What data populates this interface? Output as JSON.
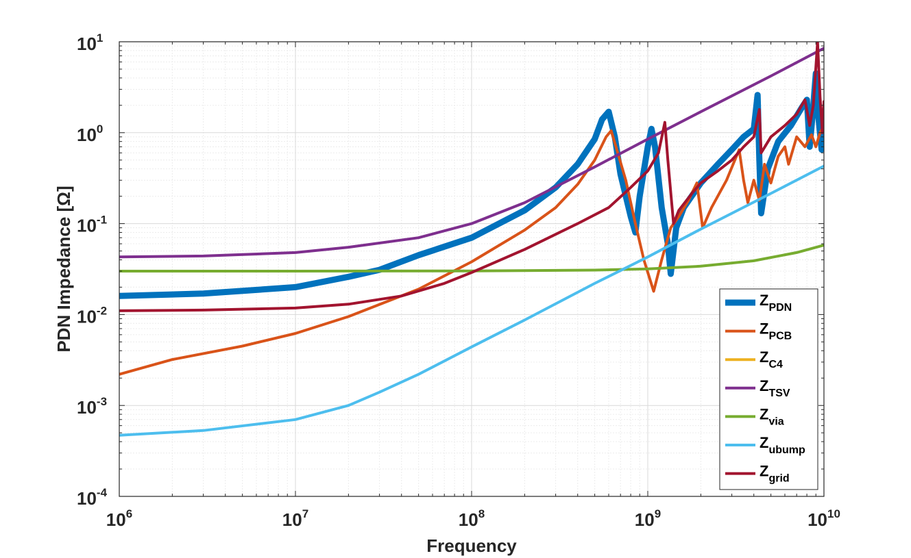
{
  "chart_data": {
    "type": "line",
    "title": "",
    "xlabel": "Frequency",
    "ylabel": "PDN Impedance [Ω]",
    "xscale": "log",
    "yscale": "log",
    "xlim": [
      1000000,
      10000000000
    ],
    "ylim": [
      0.0001,
      10
    ],
    "grid": "on (major and minor)",
    "legend_position": "lower-right",
    "x_ticks": [
      {
        "base": "10",
        "exp": "6"
      },
      {
        "base": "10",
        "exp": "7"
      },
      {
        "base": "10",
        "exp": "8"
      },
      {
        "base": "10",
        "exp": "9"
      },
      {
        "base": "10",
        "exp": "10"
      }
    ],
    "y_ticks": [
      {
        "base": "10",
        "exp": "-4"
      },
      {
        "base": "10",
        "exp": "-3"
      },
      {
        "base": "10",
        "exp": "-2"
      },
      {
        "base": "10",
        "exp": "-1"
      },
      {
        "base": "10",
        "exp": "0"
      },
      {
        "base": "10",
        "exp": "1"
      }
    ],
    "series": [
      {
        "name_main": "Z",
        "name_sub": "PDN",
        "color": "#0072BD",
        "width": 9,
        "points": [
          [
            1000000.0,
            0.016
          ],
          [
            3000000.0,
            0.017
          ],
          [
            10000000.0,
            0.02
          ],
          [
            20000000.0,
            0.026
          ],
          [
            30000000.0,
            0.031
          ],
          [
            50000000.0,
            0.045
          ],
          [
            100000000.0,
            0.07
          ],
          [
            200000000.0,
            0.14
          ],
          [
            300000000.0,
            0.25
          ],
          [
            400000000.0,
            0.45
          ],
          [
            500000000.0,
            0.85
          ],
          [
            550000000.0,
            1.4
          ],
          [
            600000000.0,
            1.7
          ],
          [
            650000000.0,
            0.9
          ],
          [
            700000000.0,
            0.35
          ],
          [
            800000000.0,
            0.12
          ],
          [
            850000000.0,
            0.08
          ],
          [
            900000000.0,
            0.2
          ],
          [
            1000000000.0,
            0.7
          ],
          [
            1050000000.0,
            1.1
          ],
          [
            1100000000.0,
            0.7
          ],
          [
            1200000000.0,
            0.15
          ],
          [
            1300000000.0,
            0.06
          ],
          [
            1350000000.0,
            0.028
          ],
          [
            1450000000.0,
            0.09
          ],
          [
            1600000000.0,
            0.15
          ],
          [
            2000000000.0,
            0.28
          ],
          [
            2500000000.0,
            0.45
          ],
          [
            3000000000.0,
            0.65
          ],
          [
            3500000000.0,
            0.9
          ],
          [
            4000000000.0,
            1.1
          ],
          [
            4200000000.0,
            2.6
          ],
          [
            4300000000.0,
            0.5
          ],
          [
            4400000000.0,
            0.13
          ],
          [
            4800000000.0,
            0.4
          ],
          [
            5500000000.0,
            0.8
          ],
          [
            6500000000.0,
            1.2
          ],
          [
            7500000000.0,
            1.9
          ],
          [
            8000000000.0,
            2.3
          ],
          [
            8300000000.0,
            0.7
          ],
          [
            8600000000.0,
            1.5
          ],
          [
            9000000000.0,
            4.5
          ],
          [
            9300000000.0,
            1.5
          ],
          [
            9700000000.0,
            0.65
          ],
          [
            10000000000.0,
            1.2
          ]
        ]
      },
      {
        "name_main": "Z",
        "name_sub": "PCB",
        "color": "#D95319",
        "width": 4,
        "points": [
          [
            1000000.0,
            0.0022
          ],
          [
            2000000.0,
            0.0032
          ],
          [
            5000000.0,
            0.0045
          ],
          [
            10000000.0,
            0.0062
          ],
          [
            20000000.0,
            0.0095
          ],
          [
            50000000.0,
            0.019
          ],
          [
            100000000.0,
            0.038
          ],
          [
            200000000.0,
            0.085
          ],
          [
            300000000.0,
            0.15
          ],
          [
            400000000.0,
            0.27
          ],
          [
            500000000.0,
            0.5
          ],
          [
            580000000.0,
            0.9
          ],
          [
            620000000.0,
            1.05
          ],
          [
            660000000.0,
            0.7
          ],
          [
            750000000.0,
            0.3
          ],
          [
            850000000.0,
            0.1
          ],
          [
            950000000.0,
            0.04
          ],
          [
            1080000000.0,
            0.018
          ],
          [
            1200000000.0,
            0.04
          ],
          [
            1350000000.0,
            0.09
          ],
          [
            1500000000.0,
            0.12
          ],
          [
            1700000000.0,
            0.18
          ],
          [
            1900000000.0,
            0.28
          ],
          [
            2050000000.0,
            0.09
          ],
          [
            2300000000.0,
            0.15
          ],
          [
            2800000000.0,
            0.3
          ],
          [
            3300000000.0,
            0.65
          ],
          [
            3500000000.0,
            0.3
          ],
          [
            3700000000.0,
            0.17
          ],
          [
            4000000000.0,
            0.3
          ],
          [
            4300000000.0,
            0.18
          ],
          [
            4600000000.0,
            0.45
          ],
          [
            5000000000.0,
            0.28
          ],
          [
            5500000000.0,
            0.55
          ],
          [
            6000000000.0,
            0.7
          ],
          [
            6300000000.0,
            0.45
          ],
          [
            7000000000.0,
            0.9
          ],
          [
            7800000000.0,
            0.7
          ],
          [
            8500000000.0,
            0.95
          ],
          [
            9000000000.0,
            0.7
          ],
          [
            9500000000.0,
            1.0
          ],
          [
            10000000000.0,
            1.2
          ]
        ]
      },
      {
        "name_main": "Z",
        "name_sub": "C4",
        "color": "#EDB120",
        "width": 4,
        "points": []
      },
      {
        "name_main": "Z",
        "name_sub": "TSV",
        "color": "#7E2F8E",
        "width": 4,
        "points": [
          [
            1000000.0,
            0.043
          ],
          [
            3000000.0,
            0.044
          ],
          [
            10000000.0,
            0.048
          ],
          [
            20000000.0,
            0.055
          ],
          [
            50000000.0,
            0.07
          ],
          [
            100000000.0,
            0.1
          ],
          [
            200000000.0,
            0.17
          ],
          [
            500000000.0,
            0.42
          ],
          [
            1000000000.0,
            0.85
          ],
          [
            2000000000.0,
            1.7
          ],
          [
            5000000000.0,
            4.2
          ],
          [
            10000000000.0,
            8.5
          ]
        ]
      },
      {
        "name_main": "Z",
        "name_sub": "via",
        "color": "#77AC30",
        "width": 4,
        "points": [
          [
            1000000.0,
            0.03
          ],
          [
            10000000.0,
            0.03
          ],
          [
            100000000.0,
            0.0302
          ],
          [
            500000000.0,
            0.0308
          ],
          [
            1000000000.0,
            0.0318
          ],
          [
            2000000000.0,
            0.034
          ],
          [
            4000000000.0,
            0.039
          ],
          [
            7000000000.0,
            0.048
          ],
          [
            10000000000.0,
            0.058
          ]
        ]
      },
      {
        "name_main": "Z",
        "name_sub": "ubump",
        "color": "#4DBEEE",
        "width": 4,
        "points": [
          [
            1000000.0,
            0.00047
          ],
          [
            3000000.0,
            0.00053
          ],
          [
            10000000.0,
            0.0007
          ],
          [
            20000000.0,
            0.001
          ],
          [
            30000000.0,
            0.0014
          ],
          [
            50000000.0,
            0.0022
          ],
          [
            100000000.0,
            0.0044
          ],
          [
            200000000.0,
            0.0087
          ],
          [
            500000000.0,
            0.022
          ],
          [
            1000000000.0,
            0.043
          ],
          [
            2000000000.0,
            0.087
          ],
          [
            5000000000.0,
            0.215
          ],
          [
            10000000000.0,
            0.43
          ]
        ]
      },
      {
        "name_main": "Z",
        "name_sub": "grid",
        "color": "#A2142F",
        "width": 4,
        "points": [
          [
            1000000.0,
            0.011
          ],
          [
            3000000.0,
            0.0112
          ],
          [
            10000000.0,
            0.0118
          ],
          [
            20000000.0,
            0.013
          ],
          [
            40000000.0,
            0.016
          ],
          [
            70000000.0,
            0.022
          ],
          [
            100000000.0,
            0.029
          ],
          [
            200000000.0,
            0.052
          ],
          [
            400000000.0,
            0.1
          ],
          [
            600000000.0,
            0.15
          ],
          [
            800000000.0,
            0.25
          ],
          [
            1000000000.0,
            0.38
          ],
          [
            1150000000.0,
            0.6
          ],
          [
            1250000000.0,
            1.3
          ],
          [
            1300000000.0,
            0.5
          ],
          [
            1400000000.0,
            0.1
          ],
          [
            1500000000.0,
            0.14
          ],
          [
            1800000000.0,
            0.22
          ],
          [
            2000000000.0,
            0.28
          ],
          [
            2500000000.0,
            0.38
          ],
          [
            3000000000.0,
            0.5
          ],
          [
            3500000000.0,
            0.7
          ],
          [
            4000000000.0,
            0.9
          ],
          [
            4300000000.0,
            1.8
          ],
          [
            4400000000.0,
            0.6
          ],
          [
            5000000000.0,
            0.9
          ],
          [
            6000000000.0,
            1.2
          ],
          [
            7000000000.0,
            1.6
          ],
          [
            7800000000.0,
            2.3
          ],
          [
            8300000000.0,
            1.2
          ],
          [
            8700000000.0,
            2.0
          ],
          [
            9200000000.0,
            10
          ],
          [
            9500000000.0,
            2.5
          ],
          [
            9800000000.0,
            1.0
          ],
          [
            10000000000.0,
            2.2
          ]
        ]
      }
    ]
  }
}
